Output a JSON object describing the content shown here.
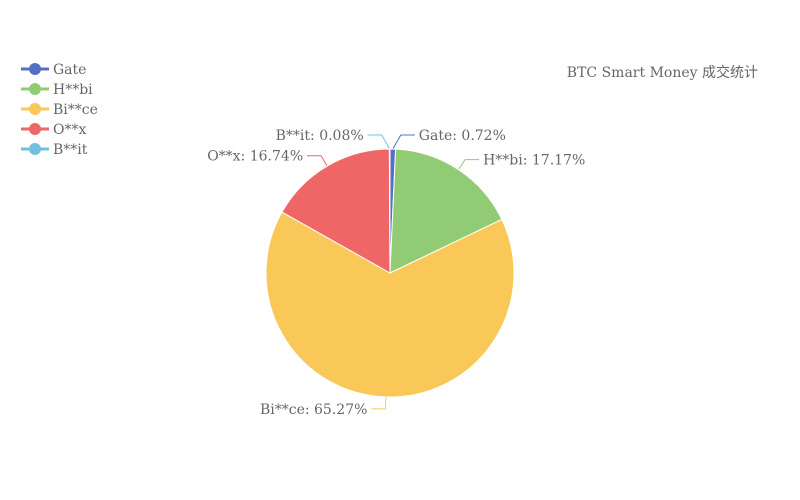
{
  "chart_data": {
    "type": "pie",
    "title": "BTC Smart Money 成交统计",
    "legend_position": "top-left",
    "slices": [
      {
        "name": "Gate",
        "value": 0.72,
        "label": "Gate: 0.72%",
        "color": "#5470c6"
      },
      {
        "name": "H**bi",
        "value": 17.17,
        "label": "H**bi: 17.17%",
        "color": "#91cc75"
      },
      {
        "name": "Bi**ce",
        "value": 65.27,
        "label": "Bi**ce: 65.27%",
        "color": "#fac858"
      },
      {
        "name": "O**x",
        "value": 16.74,
        "label": "O**x: 16.74%",
        "color": "#ee6666"
      },
      {
        "name": "B**it",
        "value": 0.08,
        "label": "B**it: 0.08%",
        "color": "#73c0de"
      }
    ]
  }
}
